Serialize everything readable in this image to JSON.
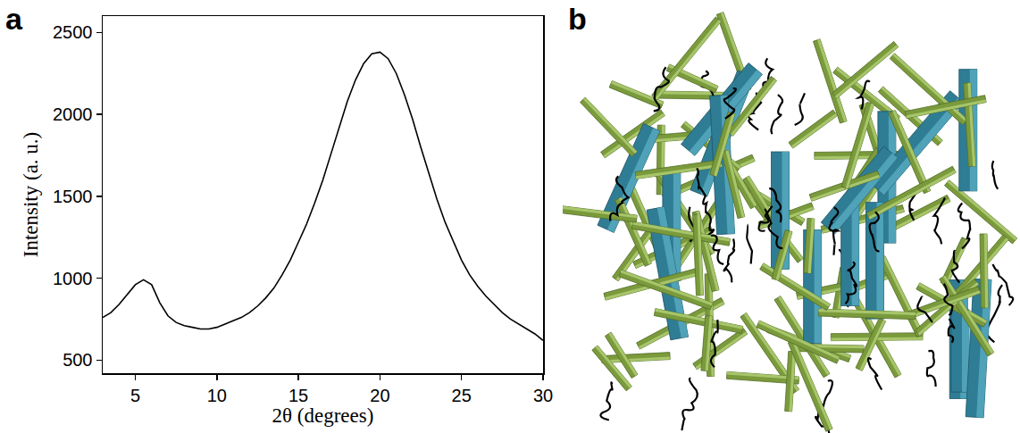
{
  "chart_data": {
    "type": "line",
    "panel_label": "a",
    "x_label": "2θ (degrees)",
    "y_label": "Intensity (a. u.)",
    "x": [
      3,
      3.5,
      4,
      4.5,
      5,
      5.5,
      6,
      6.5,
      7,
      7.5,
      8,
      8.5,
      9,
      9.5,
      10,
      10.5,
      11,
      11.5,
      12,
      12.5,
      13,
      13.5,
      14,
      14.5,
      15,
      15.5,
      16,
      16.5,
      17,
      17.5,
      18,
      18.5,
      19,
      19.5,
      20,
      20.5,
      21,
      21.5,
      22,
      22.5,
      23,
      23.5,
      24,
      24.5,
      25,
      25.5,
      26,
      26.5,
      27,
      27.5,
      28,
      28.5,
      29,
      29.5,
      30
    ],
    "values": [
      760,
      790,
      840,
      900,
      960,
      990,
      960,
      850,
      770,
      730,
      710,
      700,
      690,
      690,
      700,
      720,
      740,
      760,
      790,
      830,
      880,
      940,
      1020,
      1110,
      1220,
      1330,
      1460,
      1600,
      1760,
      1920,
      2080,
      2210,
      2310,
      2370,
      2380,
      2340,
      2250,
      2120,
      1970,
      1800,
      1640,
      1480,
      1340,
      1220,
      1110,
      1020,
      950,
      890,
      840,
      790,
      750,
      720,
      690,
      660,
      620
    ],
    "color": "#000000",
    "xlim": [
      3,
      30
    ],
    "xticks": [
      5,
      10,
      15,
      20,
      25,
      30
    ],
    "ylim": [
      420,
      2600
    ],
    "yticks": [
      500,
      1000,
      1500,
      2000,
      2500
    ],
    "grid": false
  },
  "diagram": {
    "panel_label": "b"
  }
}
